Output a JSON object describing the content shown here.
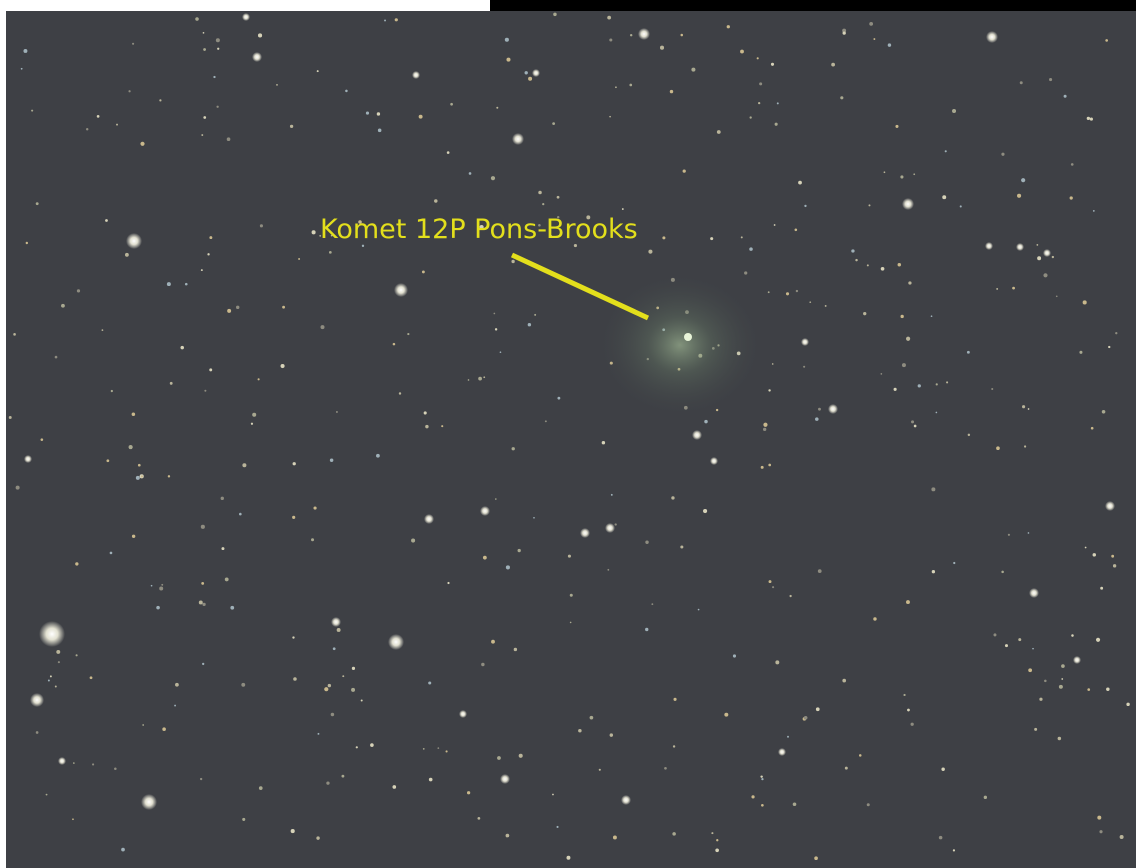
{
  "annotation": {
    "label": "Komet 12P Pons-Brooks"
  }
}
